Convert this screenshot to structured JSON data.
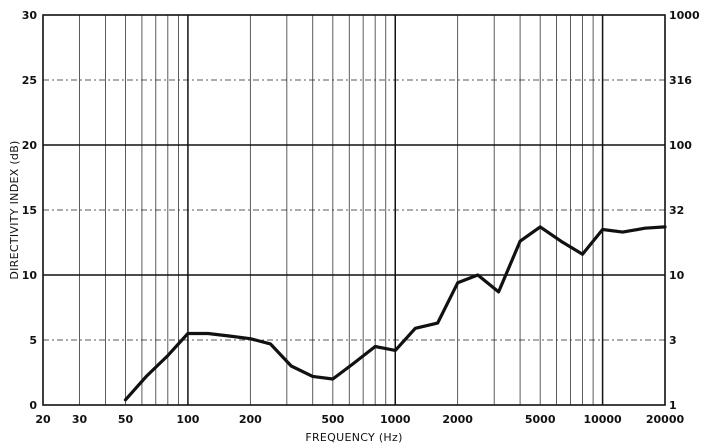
{
  "chart_data": {
    "type": "line",
    "xlabel": "FREQUENCY (Hz)",
    "ylabel": "DIRECTIVITY INDEX (dB)",
    "x_scale": "log",
    "xlim": [
      20,
      20000
    ],
    "ylim": [
      0,
      30
    ],
    "x_ticks": [
      20,
      30,
      50,
      100,
      200,
      500,
      1000,
      2000,
      5000,
      10000,
      20000
    ],
    "x_tick_labels": [
      "20",
      "30",
      "50",
      "100",
      "200",
      "500",
      "1000",
      "2000",
      "5000",
      "10000",
      "20000"
    ],
    "y_ticks": [
      0,
      5,
      10,
      15,
      20,
      25,
      30
    ],
    "y_tick_labels": [
      "0",
      "5",
      "10",
      "15",
      "20",
      "25",
      "30"
    ],
    "y2_tick_labels": [
      "1",
      "3",
      "10",
      "32",
      "100",
      "316",
      "1000"
    ],
    "grid": true,
    "series": [
      {
        "x": [
          50,
          63,
          80,
          100,
          125,
          160,
          200,
          250,
          315,
          400,
          500,
          630,
          800,
          1000,
          1250,
          1600,
          2000,
          2500,
          3150,
          4000,
          5000,
          6300,
          8000,
          10000,
          12500,
          16000,
          20000
        ],
        "values": [
          0.4,
          2.2,
          3.8,
          5.5,
          5.5,
          5.3,
          5.1,
          4.7,
          3.0,
          2.2,
          2.0,
          3.2,
          4.5,
          4.2,
          5.9,
          6.3,
          9.4,
          10.0,
          8.7,
          12.6,
          13.7,
          12.6,
          11.6,
          13.5,
          13.3,
          13.6,
          13.7
        ]
      }
    ]
  }
}
